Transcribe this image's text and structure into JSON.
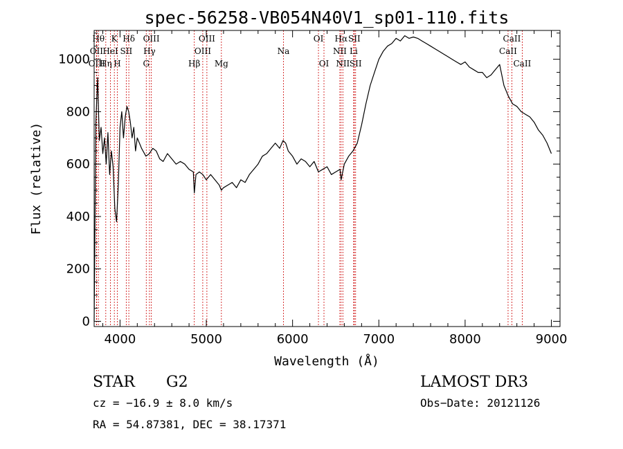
{
  "chart_data": {
    "type": "line",
    "title": "spec-56258-VB054N40V1_sp01-110.fits",
    "xlabel": "Wavelength (Å)",
    "ylabel": "Flux (relative)",
    "xlim": [
      3700,
      9100
    ],
    "ylim": [
      -20,
      1110
    ],
    "x_ticks": [
      4000,
      5000,
      6000,
      7000,
      8000,
      9000
    ],
    "y_ticks": [
      0,
      200,
      400,
      600,
      800,
      1000
    ],
    "grid": false,
    "series": [
      {
        "x": [
          3700,
          3720,
          3740,
          3760,
          3780,
          3800,
          3820,
          3840,
          3860,
          3880,
          3900,
          3920,
          3940,
          3960,
          3980,
          4000,
          4020,
          4040,
          4060,
          4080,
          4100,
          4120,
          4140,
          4160,
          4180,
          4200,
          4250,
          4300,
          4340,
          4380,
          4420,
          4460,
          4500,
          4550,
          4600,
          4650,
          4700,
          4750,
          4800,
          4850,
          4861,
          4880,
          4920,
          4960,
          5000,
          5050,
          5100,
          5150,
          5175,
          5200,
          5250,
          5300,
          5350,
          5400,
          5450,
          5500,
          5550,
          5600,
          5650,
          5700,
          5750,
          5800,
          5850,
          5890,
          5920,
          5950,
          6000,
          6050,
          6100,
          6150,
          6200,
          6250,
          6300,
          6350,
          6400,
          6450,
          6500,
          6550,
          6563,
          6600,
          6650,
          6700,
          6750,
          6800,
          6850,
          6900,
          6950,
          7000,
          7050,
          7100,
          7150,
          7200,
          7250,
          7300,
          7350,
          7400,
          7450,
          7500,
          7550,
          7600,
          7650,
          7700,
          7750,
          7800,
          7850,
          7900,
          7950,
          8000,
          8050,
          8100,
          8150,
          8200,
          8250,
          8300,
          8350,
          8400,
          8450,
          8500,
          8550,
          8600,
          8650,
          8700,
          8750,
          8800,
          8850,
          8900,
          8950,
          9000
        ],
        "y": [
          0,
          760,
          930,
          690,
          740,
          640,
          700,
          600,
          720,
          560,
          650,
          590,
          430,
          380,
          520,
          740,
          800,
          700,
          780,
          820,
          800,
          760,
          700,
          740,
          650,
          700,
          660,
          630,
          640,
          660,
          650,
          620,
          610,
          640,
          620,
          600,
          610,
          600,
          580,
          570,
          490,
          560,
          570,
          560,
          540,
          560,
          540,
          520,
          500,
          510,
          520,
          530,
          510,
          540,
          530,
          560,
          580,
          600,
          630,
          640,
          660,
          680,
          660,
          690,
          680,
          650,
          630,
          600,
          620,
          610,
          590,
          610,
          570,
          580,
          590,
          560,
          570,
          580,
          540,
          600,
          630,
          650,
          680,
          750,
          830,
          900,
          950,
          1000,
          1030,
          1050,
          1060,
          1080,
          1070,
          1090,
          1080,
          1085,
          1080,
          1070,
          1060,
          1050,
          1040,
          1030,
          1020,
          1010,
          1000,
          990,
          980,
          990,
          970,
          960,
          950,
          950,
          930,
          940,
          960,
          980,
          900,
          860,
          830,
          820,
          800,
          790,
          780,
          760,
          730,
          710,
          680,
          640
        ]
      }
    ],
    "emission_lines": [
      {
        "label": "OII",
        "x": 3727,
        "row": 1
      },
      {
        "label": "OIII",
        "x": 3730,
        "row": 2
      },
      {
        "label": "Hθ",
        "x": 3750,
        "row": 0
      },
      {
        "label": "Hη",
        "x": 3835,
        "row": 2
      },
      {
        "label": "HeI",
        "x": 3889,
        "row": 1
      },
      {
        "label": "K",
        "x": 3934,
        "row": 0
      },
      {
        "label": "H",
        "x": 3969,
        "row": 2
      },
      {
        "label": "SII",
        "x": 4072,
        "row": 1
      },
      {
        "label": "Hδ",
        "x": 4102,
        "row": 0
      },
      {
        "label": "G",
        "x": 4304,
        "row": 2
      },
      {
        "label": "Hγ",
        "x": 4341,
        "row": 1
      },
      {
        "label": "OIII",
        "x": 4363,
        "row": 0
      },
      {
        "label": "Hβ",
        "x": 4861,
        "row": 2
      },
      {
        "label": "OIII",
        "x": 4959,
        "row": 1
      },
      {
        "label": "OIII",
        "x": 5007,
        "row": 0
      },
      {
        "label": "Mg",
        "x": 5175,
        "row": 2
      },
      {
        "label": "Na",
        "x": 5894,
        "row": 1
      },
      {
        "label": "OI",
        "x": 6300,
        "row": 0
      },
      {
        "label": "OI",
        "x": 6364,
        "row": 2
      },
      {
        "label": "NII",
        "x": 6548,
        "row": 1
      },
      {
        "label": "Hα",
        "x": 6563,
        "row": 0
      },
      {
        "label": "NII",
        "x": 6583,
        "row": 2
      },
      {
        "label": "Li",
        "x": 6708,
        "row": 1
      },
      {
        "label": "SII",
        "x": 6716,
        "row": 0
      },
      {
        "label": "SII",
        "x": 6731,
        "row": 2
      },
      {
        "label": "CaII",
        "x": 8498,
        "row": 1
      },
      {
        "label": "CaII",
        "x": 8542,
        "row": 0
      },
      {
        "label": "CaII",
        "x": 8662,
        "row": 2
      }
    ]
  },
  "info": {
    "class": "STAR",
    "subclass": "G2",
    "survey": "LAMOST DR3",
    "cz": "cz = −16.9 ± 8.0 km/s",
    "obs_date": "Obs−Date: 20121126",
    "radec": "RA =  54.87381, DEC =  38.17371"
  }
}
